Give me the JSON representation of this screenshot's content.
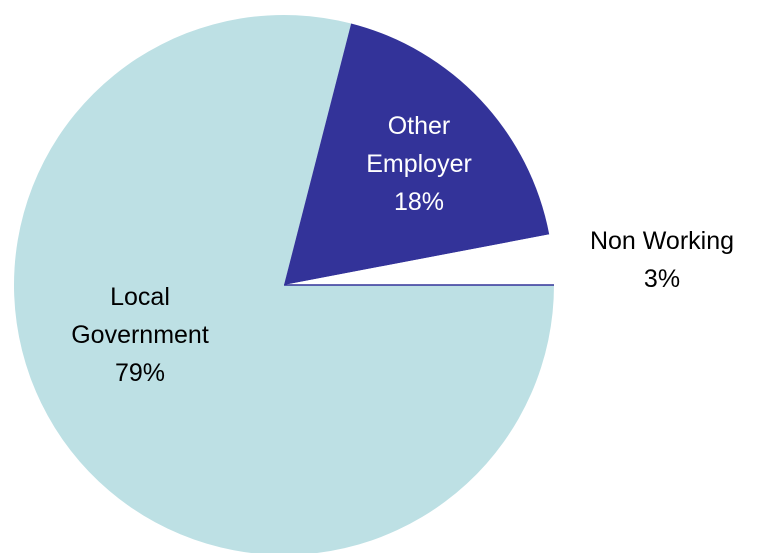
{
  "chart_data": {
    "type": "pie",
    "title": "",
    "slices": [
      {
        "name": "Local Government",
        "label_lines": [
          "Local",
          "Government",
          "79%"
        ],
        "value": 79,
        "color": "#bde0e4",
        "label_color": "#000000"
      },
      {
        "name": "Other Employer",
        "label_lines": [
          "Other",
          "Employer",
          "18%"
        ],
        "value": 18,
        "color": "#333399",
        "label_color": "#ffffff"
      },
      {
        "name": "Non Working",
        "label_lines": [
          "Non Working",
          "3%"
        ],
        "value": 3,
        "color": "#ffffff",
        "label_color": "#000000"
      }
    ],
    "legend": "none"
  }
}
